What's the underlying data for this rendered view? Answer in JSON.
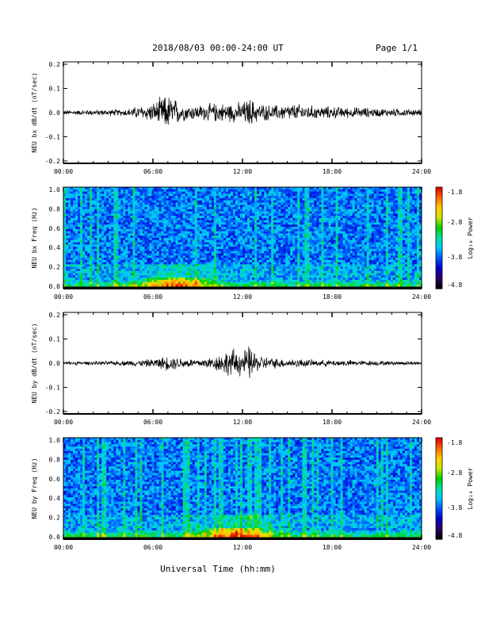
{
  "header": {
    "title": "2018/08/03  00:00-24:00 UT",
    "page": "Page 1/1"
  },
  "footer": {
    "xlabel": "Universal Time (hh:mm)"
  },
  "colorbar": {
    "label": "Log₁₀ Power",
    "ticks": [
      "-1.8",
      "-2.8",
      "-3.8",
      "-4.8"
    ],
    "range": [
      -4.8,
      -1.8
    ],
    "colors": [
      "#000000",
      "#2a006a",
      "#0000cc",
      "#0055ff",
      "#00c8ff",
      "#00e0a0",
      "#00d000",
      "#c8e600",
      "#ffd000",
      "#ff6a00",
      "#e00000"
    ]
  },
  "time_ticks": [
    "00:00",
    "06:00",
    "12:00",
    "18:00",
    "24:00"
  ],
  "chart_data": [
    {
      "type": "line",
      "ylabel": "NEU bx dB/dt (nT/sec)",
      "xlim": [
        0,
        24
      ],
      "ylim": [
        -0.2,
        0.2
      ],
      "yticks": [
        "0.2",
        "0.1",
        "0.0",
        "-0.1",
        "-0.2"
      ],
      "series": [
        {
          "x": [
            0,
            1,
            2,
            3,
            4,
            5,
            6,
            6.5,
            7,
            7.5,
            8,
            9,
            10,
            11,
            12,
            12.5,
            13,
            14,
            15,
            16,
            17,
            18,
            19,
            20,
            21,
            22,
            23,
            24
          ],
          "amp": [
            0.012,
            0.012,
            0.014,
            0.015,
            0.016,
            0.03,
            0.045,
            0.07,
            0.085,
            0.065,
            0.04,
            0.035,
            0.045,
            0.045,
            0.05,
            0.07,
            0.045,
            0.035,
            0.04,
            0.04,
            0.03,
            0.03,
            0.025,
            0.025,
            0.02,
            0.02,
            0.018,
            0.015
          ]
        }
      ]
    },
    {
      "type": "heatmap",
      "ylabel": "NEU bx Freq (Hz)",
      "xlim": [
        0,
        24
      ],
      "ylim": [
        0,
        1.0
      ],
      "yticks": [
        "1.0",
        "0.8",
        "0.6",
        "0.4",
        "0.2",
        "0.0"
      ],
      "zlim": [
        -4.8,
        -1.8
      ],
      "zlabel": "Log₁₀ Power"
    },
    {
      "type": "line",
      "ylabel": "NEU by dB/dt (nT/sec)",
      "xlim": [
        0,
        24
      ],
      "ylim": [
        -0.2,
        0.2
      ],
      "yticks": [
        "0.2",
        "0.1",
        "0.0",
        "-0.1",
        "-0.2"
      ],
      "series": [
        {
          "x": [
            0,
            1,
            2,
            3,
            4,
            5,
            6,
            7,
            8,
            9,
            10,
            10.5,
            11,
            11.5,
            12,
            12.5,
            13,
            14,
            15,
            16,
            17,
            18,
            19,
            20,
            21,
            22,
            23,
            24
          ],
          "amp": [
            0.008,
            0.008,
            0.009,
            0.01,
            0.012,
            0.015,
            0.02,
            0.035,
            0.025,
            0.02,
            0.03,
            0.045,
            0.06,
            0.07,
            0.055,
            0.085,
            0.04,
            0.025,
            0.02,
            0.02,
            0.015,
            0.015,
            0.015,
            0.012,
            0.012,
            0.01,
            0.01,
            0.008
          ]
        }
      ]
    },
    {
      "type": "heatmap",
      "ylabel": "NEU by Freq (Hz)",
      "xlim": [
        0,
        24
      ],
      "ylim": [
        0,
        1.0
      ],
      "yticks": [
        "1.0",
        "0.8",
        "0.6",
        "0.4",
        "0.2",
        "0.0"
      ],
      "zlim": [
        -4.8,
        -1.8
      ],
      "zlabel": "Log₁₀ Power"
    }
  ]
}
